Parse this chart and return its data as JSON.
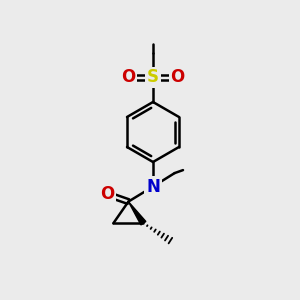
{
  "bg_color": "#ebebeb",
  "bond_color": "#000000",
  "N_color": "#0000cc",
  "O_color": "#cc0000",
  "S_color": "#cccc00",
  "line_width": 1.8,
  "figsize": [
    3.0,
    3.0
  ],
  "dpi": 100,
  "xlim": [
    0,
    10
  ],
  "ylim": [
    0,
    10
  ]
}
